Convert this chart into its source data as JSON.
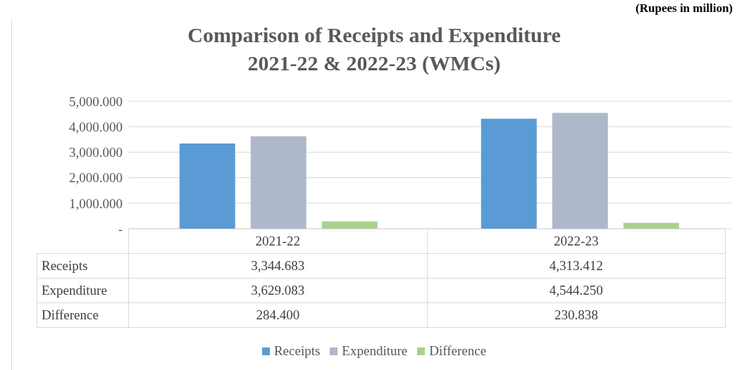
{
  "chart_data": {
    "type": "bar",
    "title": "Comparison of Receipts and Expenditure\n2021-22 & 2022-23 (WMCs)",
    "annotations": [
      "(Rupees in million)"
    ],
    "categories": [
      "2021-22",
      "2022-23"
    ],
    "series": [
      {
        "name": "Receipts",
        "color": "#5b9bd5",
        "values": [
          3344.683,
          4313.412
        ],
        "value_labels": [
          "3,344.683",
          "4,313.412"
        ]
      },
      {
        "name": "Expenditure",
        "color": "#adb9ca",
        "values": [
          3629.083,
          4544.25
        ],
        "value_labels": [
          "3,629.083",
          "4,544.250"
        ]
      },
      {
        "name": "Difference",
        "color": "#a9d18e",
        "values": [
          284.4,
          230.838
        ],
        "value_labels": [
          "284.400",
          "230.838"
        ]
      }
    ],
    "ylim": [
      0,
      5000
    ],
    "yticks": [
      {
        "value": 0,
        "label": "-"
      },
      {
        "value": 1000,
        "label": "1,000.000"
      },
      {
        "value": 2000,
        "label": "2,000.000"
      },
      {
        "value": 3000,
        "label": "3,000.000"
      },
      {
        "value": 4000,
        "label": "4,000.000"
      },
      {
        "value": 5000,
        "label": "5,000.000"
      }
    ],
    "grid": "y",
    "legend": "bottom",
    "data_labels": true
  }
}
